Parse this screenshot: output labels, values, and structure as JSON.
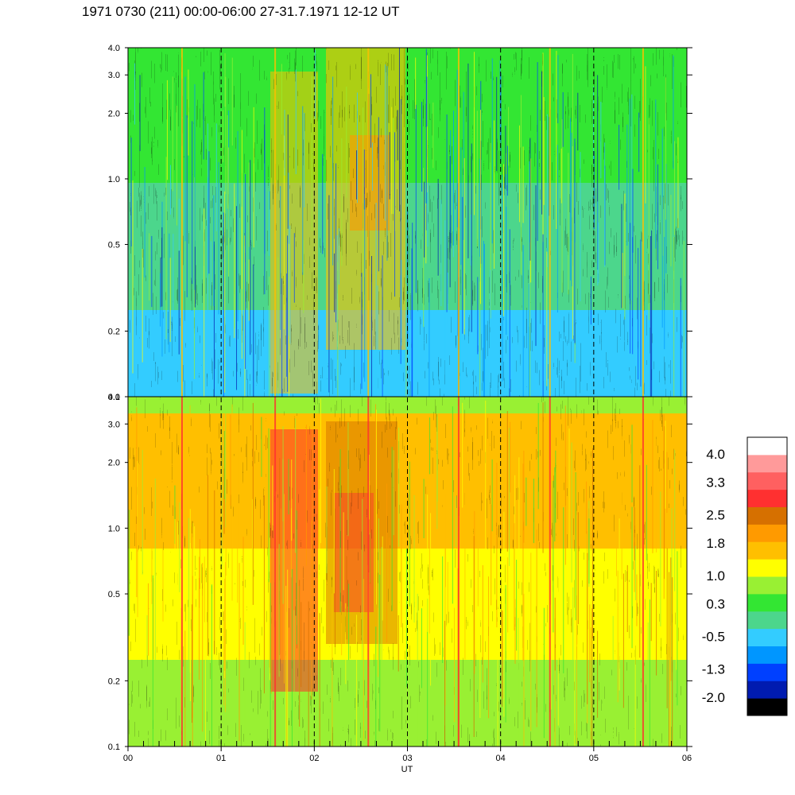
{
  "title": "1971 0730 (211) 00:00-06:00 27-31.7.1971  12-12 UT",
  "chart_data": {
    "type": "heatmap",
    "panels": 2,
    "x_label": "UT",
    "x_ticks": [
      "00",
      "01",
      "02",
      "03",
      "04",
      "05",
      "06"
    ],
    "x_range": [
      0,
      6
    ],
    "y_scale": "log",
    "y_range": [
      0.1,
      4.0
    ],
    "y_ticks": [
      {
        "value": 0.1,
        "label": "0.1"
      },
      {
        "value": 0.2,
        "label": "0.2"
      },
      {
        "value": 0.5,
        "label": "0.5"
      },
      {
        "value": 1.0,
        "label": "1.0"
      },
      {
        "value": 2.0,
        "label": "2.0"
      },
      {
        "value": 3.0,
        "label": "3.0"
      },
      {
        "value": 4.0,
        "label": "4.0"
      }
    ],
    "hour_gridlines": "dashed",
    "colorbar": {
      "labels": [
        "4.0",
        "3.3",
        "2.5",
        "1.8",
        "1.0",
        "0.3",
        "-0.5",
        "-1.3",
        "-2.0"
      ],
      "range": [
        -2.0,
        4.0
      ],
      "colors": [
        "#000000",
        "#001bb0",
        "#0040ff",
        "#0096ff",
        "#33ccff",
        "#4cd68c",
        "#33e633",
        "#99f033",
        "#ffff00",
        "#ffbf00",
        "#ff9a00",
        "#d67000",
        "#ff3030",
        "#ff6060",
        "#ff9a9a",
        "#ffffff"
      ]
    }
  }
}
